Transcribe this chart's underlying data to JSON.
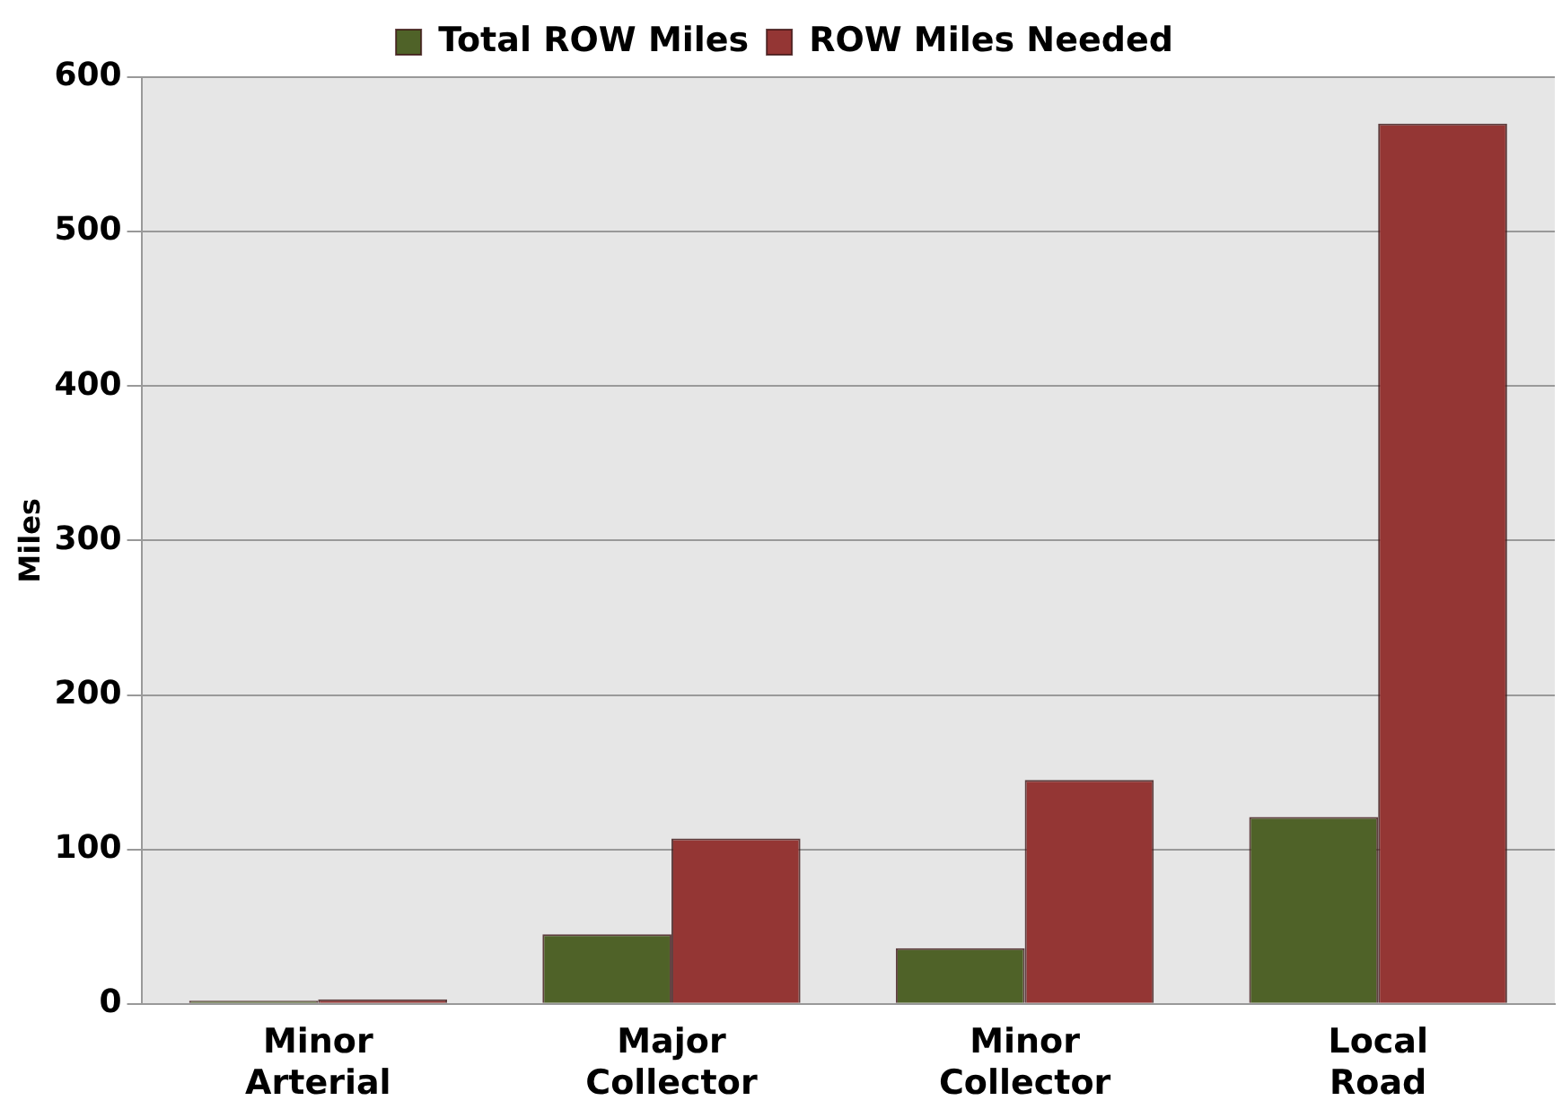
{
  "chart_data": {
    "type": "bar",
    "ylabel": "Miles",
    "categories": [
      "Minor\nArterial",
      "Major\nCollector",
      "Minor\nCollector",
      "Local\nRoad"
    ],
    "series": [
      {
        "name": "Total ROW Miles",
        "color": "#4f6228",
        "values": [
          2,
          45,
          36,
          121
        ]
      },
      {
        "name": "ROW Miles Needed",
        "color": "#943634",
        "values": [
          3,
          107,
          145,
          570
        ]
      }
    ],
    "ylim": [
      0,
      600
    ],
    "yticks": [
      0,
      100,
      200,
      300,
      400,
      500,
      600
    ],
    "grid": "y",
    "legend": "top"
  }
}
